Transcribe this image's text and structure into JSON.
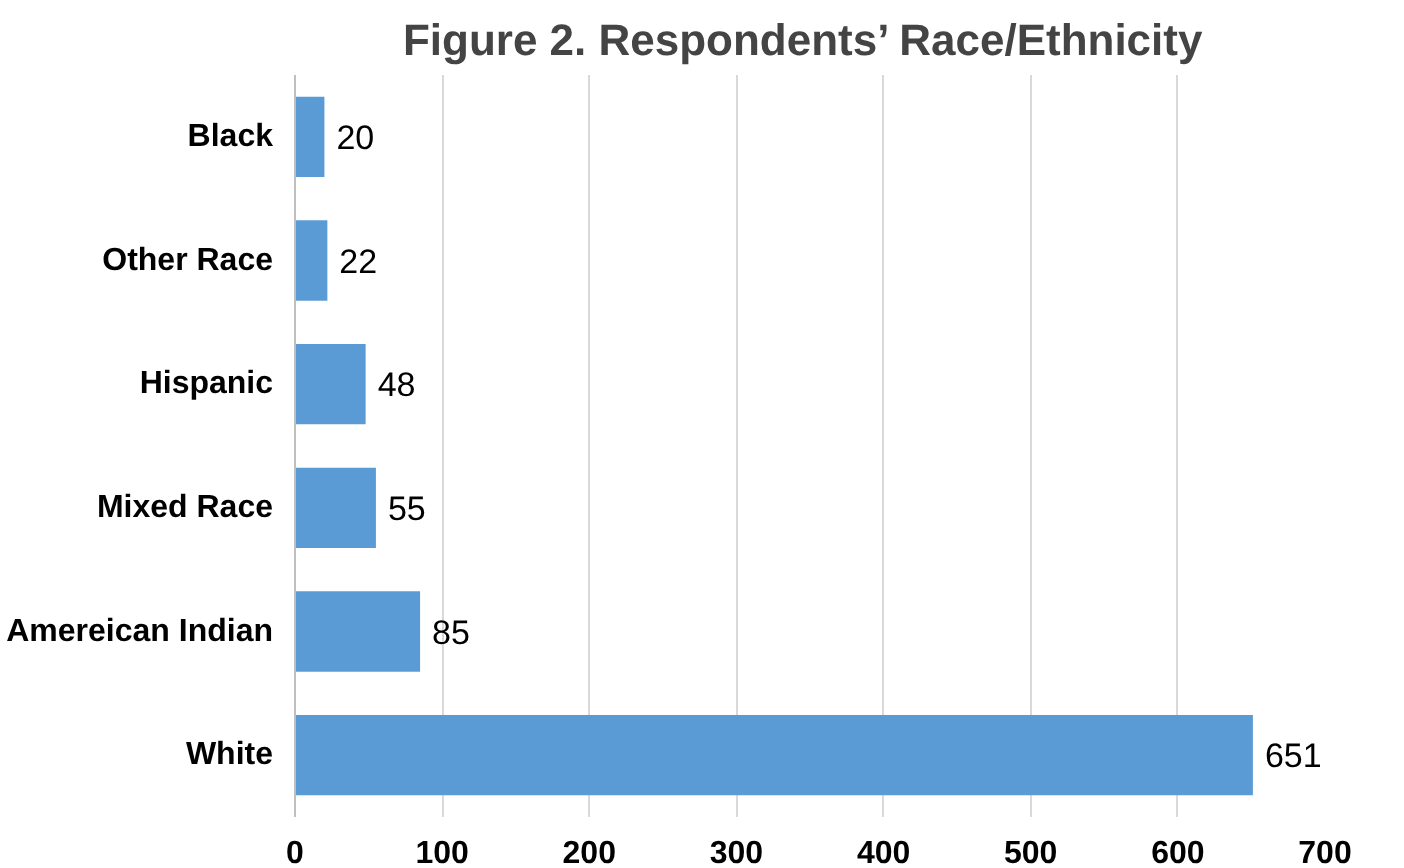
{
  "chart_data": {
    "type": "bar",
    "orientation": "horizontal",
    "title": "Figure 2.  Respondents’ Race/Ethnicity",
    "categories": [
      "Black",
      "Other Race",
      "Hispanic",
      "Mixed Race",
      "Amereican Indian",
      "White"
    ],
    "values": [
      20,
      22,
      48,
      55,
      85,
      651
    ],
    "color": "#5b9bd5",
    "xlim": [
      0,
      700
    ],
    "xticks": [
      0,
      100,
      200,
      300,
      400,
      500,
      600,
      700
    ],
    "grid": "x",
    "data_labels": true
  }
}
